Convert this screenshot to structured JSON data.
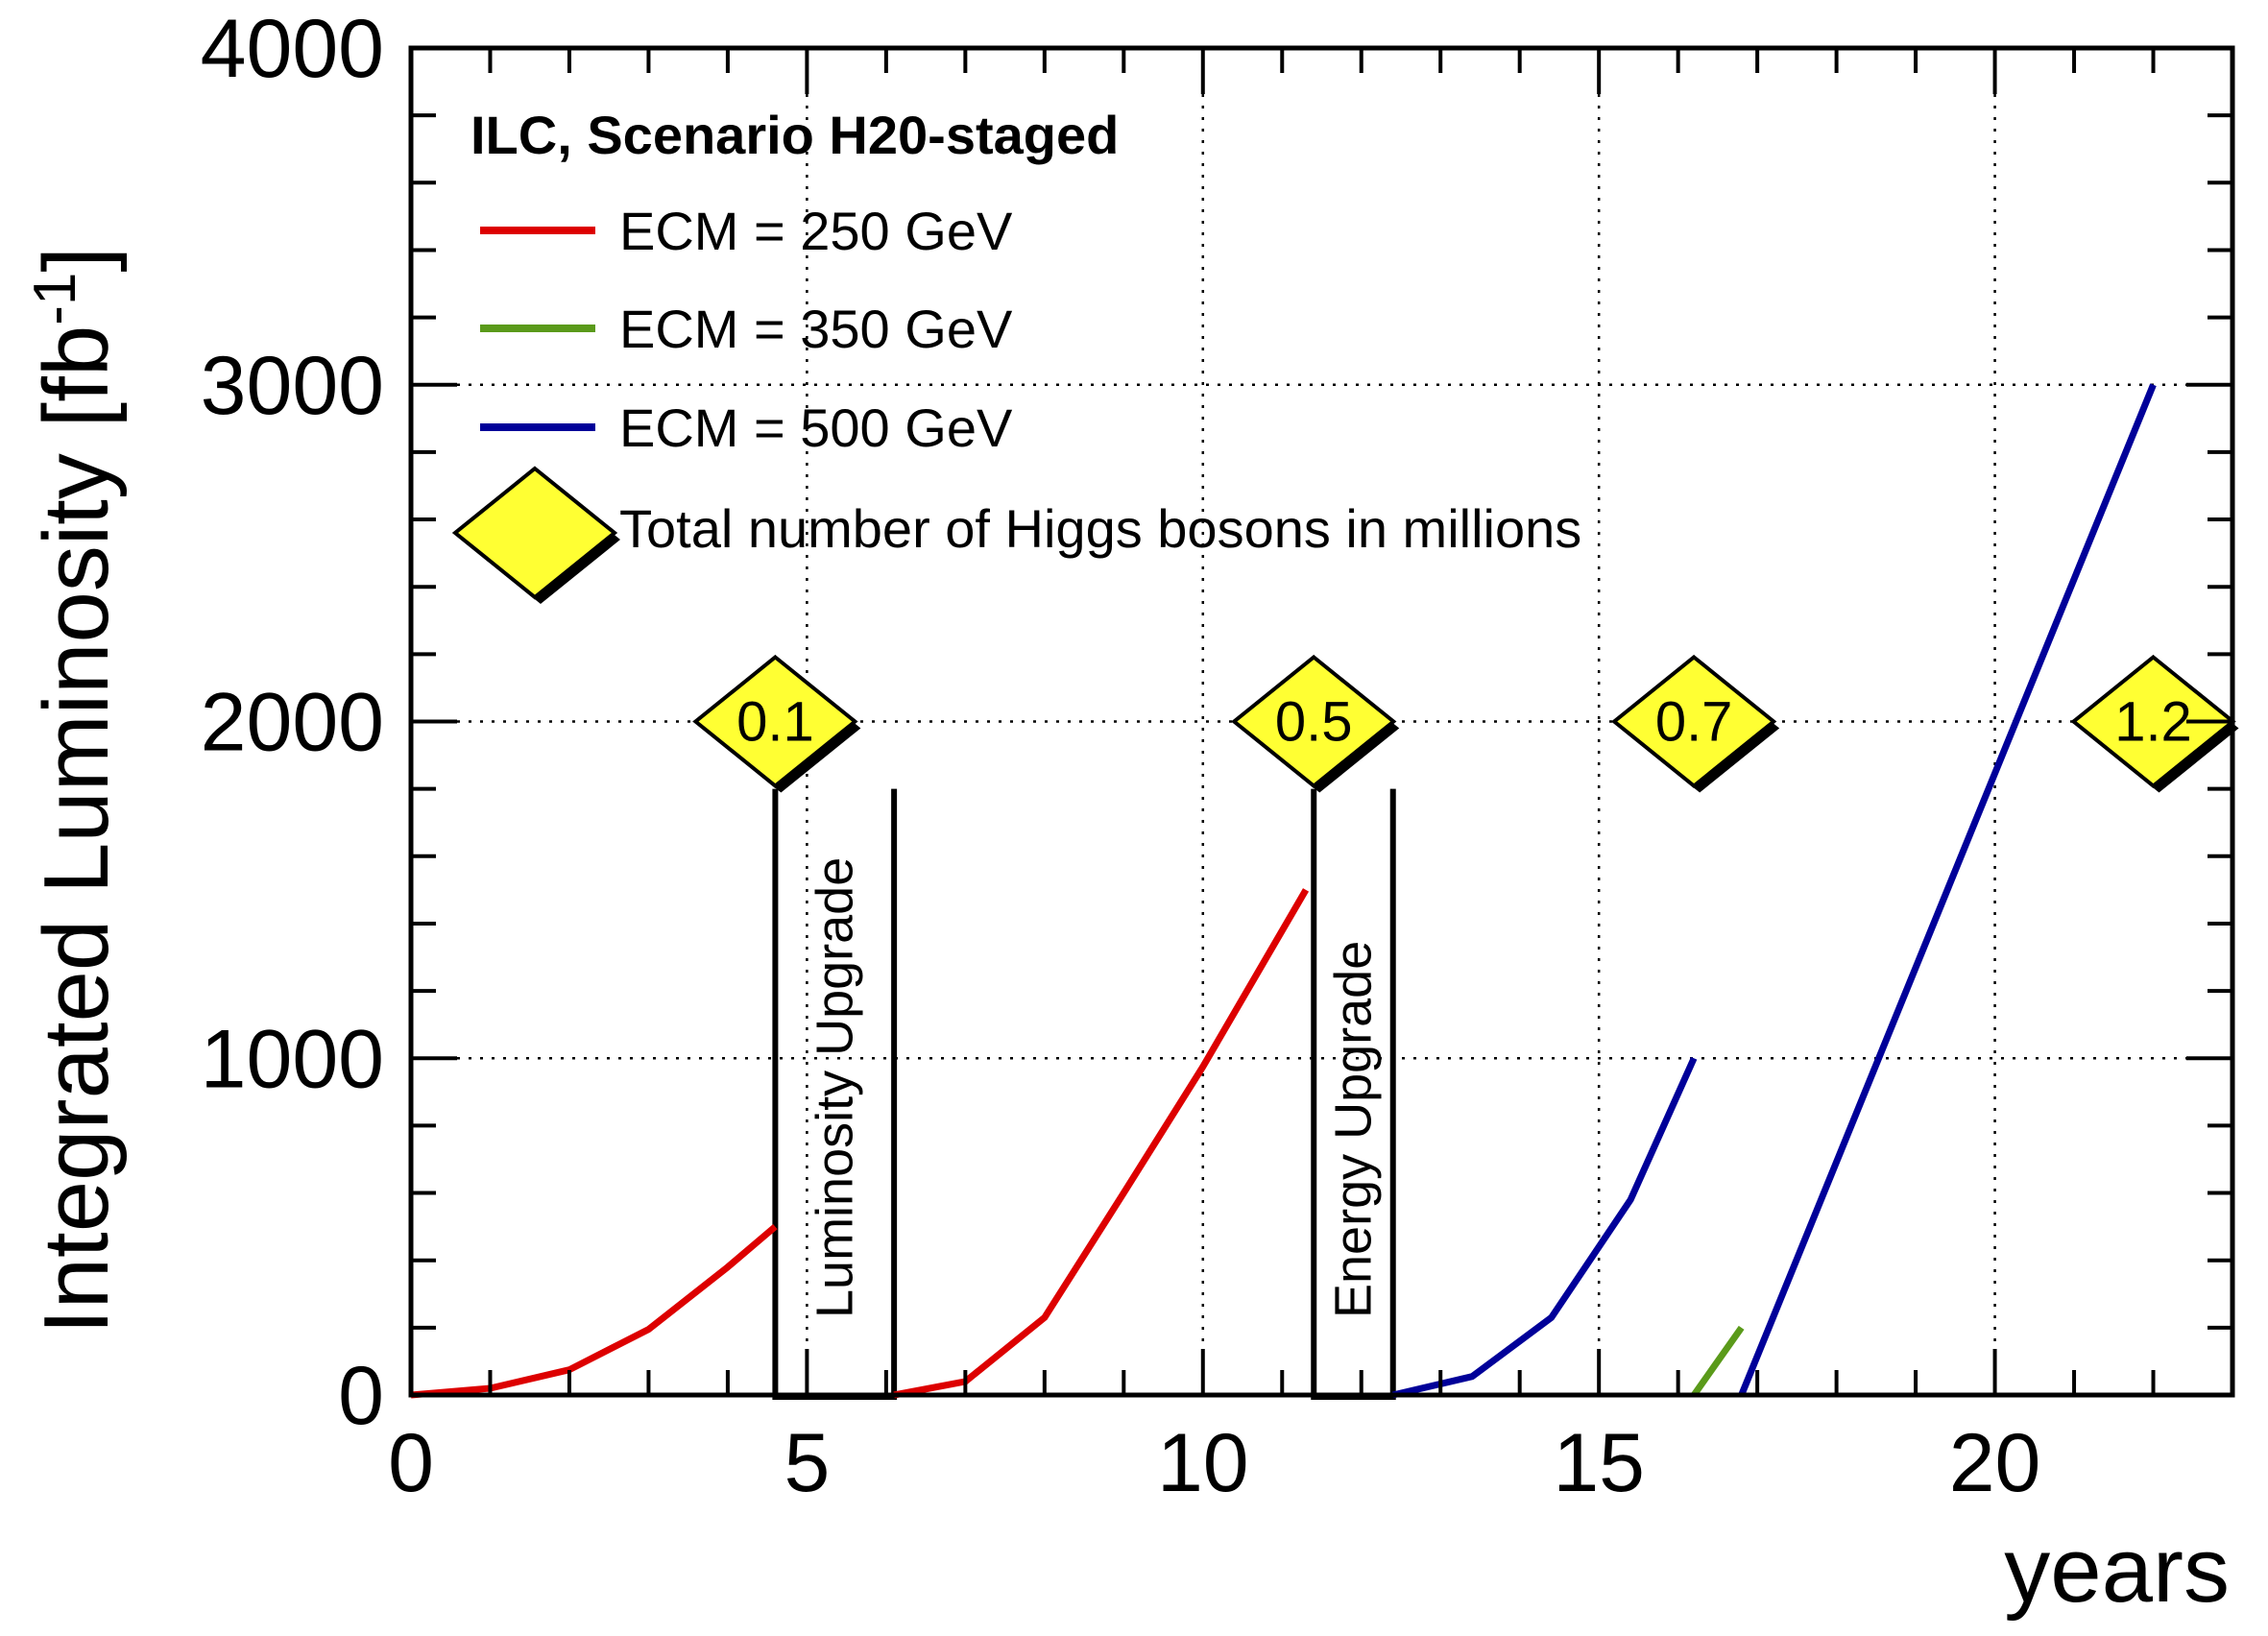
{
  "chart_data": {
    "type": "line",
    "title": "ILC, Scenario H20-staged",
    "xlabel": "years",
    "ylabel": "Integrated Luminosity  [fb",
    "ylabel_sup": "-1",
    "ylabel_close": "]",
    "xlim": [
      0,
      23
    ],
    "ylim": [
      0,
      4000
    ],
    "x_ticks": [
      0,
      5,
      10,
      15,
      20
    ],
    "x_tick_labels": [
      "0",
      "5",
      "10",
      "15",
      "20"
    ],
    "y_ticks": [
      0,
      1000,
      2000,
      3000,
      4000
    ],
    "y_tick_labels": [
      "0",
      "1000",
      "2000",
      "3000",
      "4000"
    ],
    "grid": true,
    "legend_position": "top-left",
    "series": [
      {
        "name": "ECM = 250 GeV",
        "color": "#dd0000",
        "x": [
          0,
          1,
          2,
          3,
          4,
          4.6
        ],
        "y": [
          0,
          20,
          75,
          195,
          380,
          500
        ]
      },
      {
        "name": "ECM = 250 GeV",
        "color": "#dd0000",
        "x": [
          6.1,
          7,
          8,
          9,
          10,
          11.3
        ],
        "y": [
          0,
          40,
          230,
          600,
          975,
          1500
        ]
      },
      {
        "name": "ECM = 500 GeV",
        "color": "#000099",
        "x": [
          12.4,
          13.4,
          14.4,
          15.4,
          16.2
        ],
        "y": [
          0,
          55,
          230,
          580,
          1000
        ]
      },
      {
        "name": "ECM = 350 GeV",
        "color": "#5a9a1a",
        "x": [
          16.2,
          16.8
        ],
        "y": [
          0,
          200
        ]
      },
      {
        "name": "ECM = 500 GeV",
        "color": "#000099",
        "x": [
          16.8,
          22
        ],
        "y": [
          0,
          3000
        ]
      }
    ],
    "legend": [
      {
        "label": "ECM = 250 GeV",
        "color": "#dd0000"
      },
      {
        "label": "ECM = 350 GeV",
        "color": "#5a9a1a"
      },
      {
        "label": "ECM = 500 GeV",
        "color": "#000099"
      }
    ],
    "marker_legend_label": "Total number of Higgs bosons in millions",
    "higgs_markers": [
      {
        "x": 4.6,
        "y": 2000,
        "label": "0.1"
      },
      {
        "x": 11.4,
        "y": 2000,
        "label": "0.5"
      },
      {
        "x": 16.2,
        "y": 2000,
        "label": "0.7"
      },
      {
        "x": 22,
        "y": 2000,
        "label": "1.2"
      }
    ],
    "upgrades": [
      {
        "label": "Luminosity Upgrade",
        "x_start": 4.6,
        "x_end": 6.1,
        "top": 1800
      },
      {
        "label": "Energy Upgrade",
        "x_start": 11.4,
        "x_end": 12.4,
        "top": 1800
      }
    ]
  }
}
